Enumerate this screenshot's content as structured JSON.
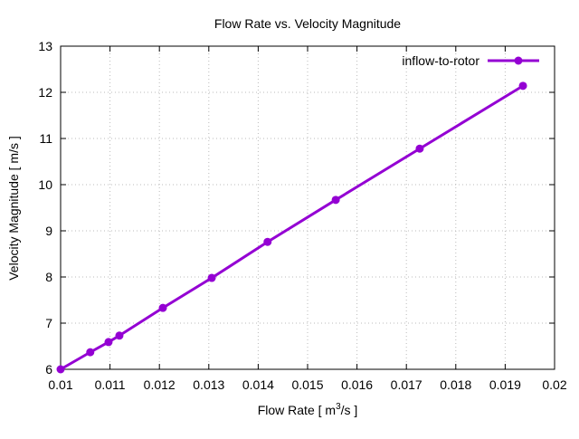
{
  "chart_data": {
    "type": "line",
    "title": "Flow Rate vs. Velocity Magnitude",
    "xlabel_main": "Flow Rate [ m",
    "xlabel_sup": "3",
    "xlabel_tail": "/s ]",
    "ylabel": "Velocity Magnitude [ m/s ]",
    "xlim": [
      0.01,
      0.02
    ],
    "ylim": [
      6,
      13
    ],
    "xticks": [
      "0.01",
      "0.011",
      "0.012",
      "0.013",
      "0.014",
      "0.015",
      "0.016",
      "0.017",
      "0.018",
      "0.019",
      "0.02"
    ],
    "yticks": [
      "6",
      "7",
      "8",
      "9",
      "10",
      "11",
      "12",
      "13"
    ],
    "grid": true,
    "legend_position": "top-right",
    "series": [
      {
        "name": "inflow-to-rotor",
        "color": "#9400d3",
        "x": [
          0.01,
          0.0106,
          0.01097,
          0.01119,
          0.01207,
          0.01306,
          0.01419,
          0.01557,
          0.01727,
          0.01936
        ],
        "y": [
          6.0,
          6.37,
          6.59,
          6.73,
          7.33,
          7.98,
          8.76,
          9.67,
          10.78,
          12.14
        ]
      }
    ]
  }
}
